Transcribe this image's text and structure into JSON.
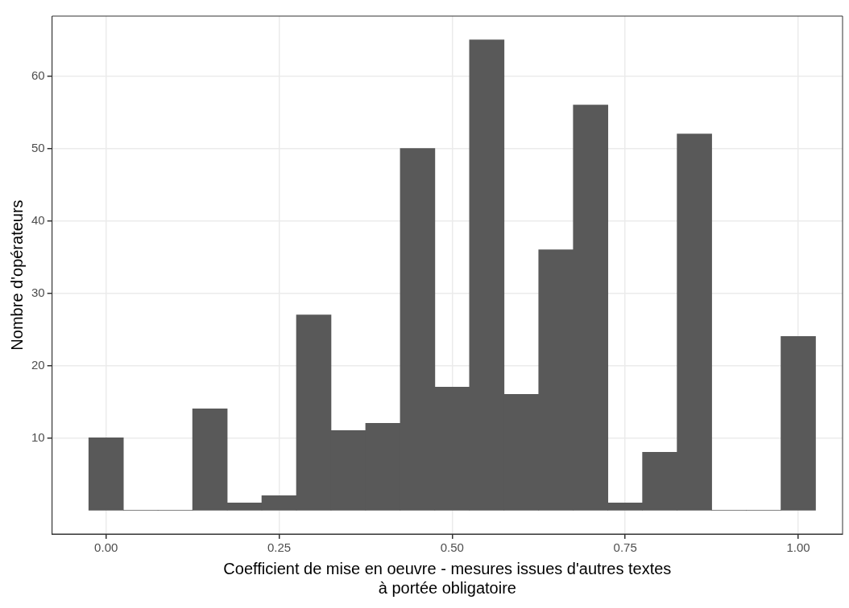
{
  "chart_data": {
    "type": "histogram",
    "xlabel": "Coefficient de mise en oeuvre - mesures issues d'autres textes\nà portée obligatoire",
    "ylabel": "Nombre d'opérateurs",
    "bins": [
      -0.025,
      0.025,
      0.075,
      0.125,
      0.175,
      0.225,
      0.275,
      0.325,
      0.375,
      0.425,
      0.475,
      0.525,
      0.575,
      0.625,
      0.675,
      0.725,
      0.775,
      0.825,
      0.875,
      0.925,
      0.975,
      1.025
    ],
    "values": [
      10,
      0,
      0,
      14,
      1,
      2,
      27,
      11,
      12,
      50,
      17,
      65,
      16,
      36,
      56,
      1,
      8,
      52,
      0,
      0,
      24
    ],
    "color": "#595959",
    "xlim": [
      -0.078,
      1.064
    ],
    "ylim": [
      -3.3,
      68.3
    ],
    "xticks": [
      {
        "value": 0,
        "label": "0.00"
      },
      {
        "value": 0.25,
        "label": "0.25"
      },
      {
        "value": 0.5,
        "label": "0.50"
      },
      {
        "value": 0.75,
        "label": "0.75"
      },
      {
        "value": 1,
        "label": "1.00"
      }
    ],
    "yticks": [
      10,
      20,
      30,
      40,
      50,
      60
    ],
    "grid": true,
    "legend": false
  }
}
